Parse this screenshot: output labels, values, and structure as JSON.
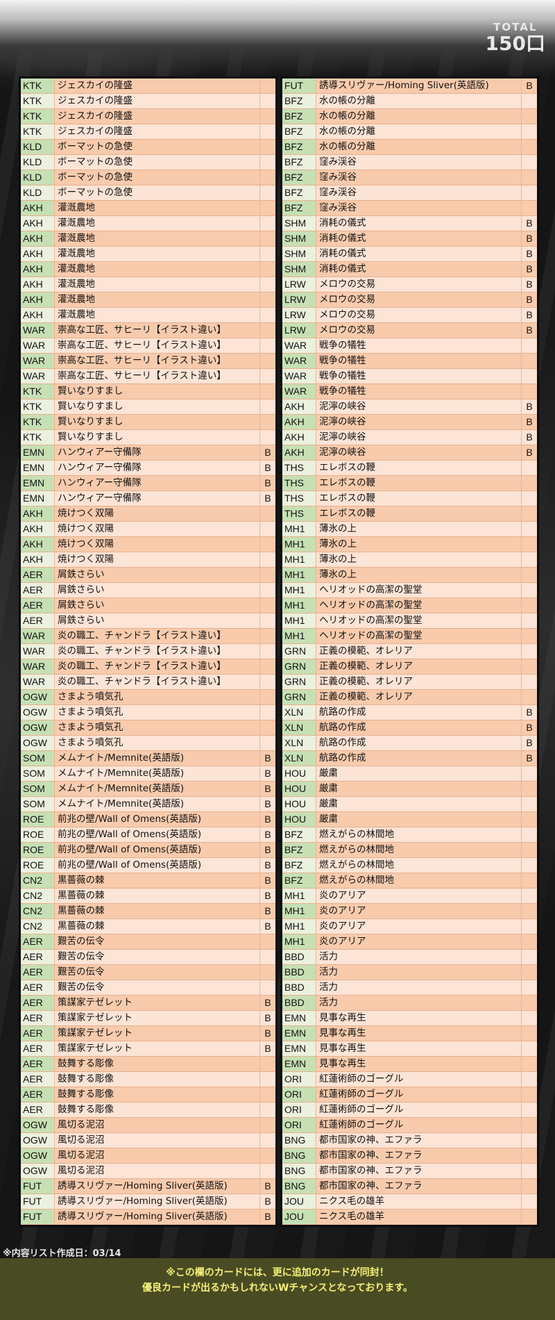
{
  "total": {
    "label": "TOTAL",
    "value": "150口"
  },
  "colors": {
    "code_bg": "#c6e0b4",
    "code_bg_alt": "#ebf1de",
    "name_bg": "#f8cbad",
    "name_bg_alt": "#fce4d6",
    "band": "#494c22",
    "band_text": "#f5ef7a"
  },
  "left_table": [
    [
      "KTK",
      "ジェスカイの隆盛",
      ""
    ],
    [
      "KTK",
      "ジェスカイの隆盛",
      ""
    ],
    [
      "KTK",
      "ジェスカイの隆盛",
      ""
    ],
    [
      "KTK",
      "ジェスカイの隆盛",
      ""
    ],
    [
      "KLD",
      "ボーマットの急使",
      ""
    ],
    [
      "KLD",
      "ボーマットの急使",
      ""
    ],
    [
      "KLD",
      "ボーマットの急使",
      ""
    ],
    [
      "KLD",
      "ボーマットの急使",
      ""
    ],
    [
      "AKH",
      "灌漑農地",
      ""
    ],
    [
      "AKH",
      "灌漑農地",
      ""
    ],
    [
      "AKH",
      "灌漑農地",
      ""
    ],
    [
      "AKH",
      "灌漑農地",
      ""
    ],
    [
      "AKH",
      "灌漑農地",
      ""
    ],
    [
      "AKH",
      "灌漑農地",
      ""
    ],
    [
      "AKH",
      "灌漑農地",
      ""
    ],
    [
      "AKH",
      "灌漑農地",
      ""
    ],
    [
      "WAR",
      "崇高な工匠、サヒーリ【イラスト違い】",
      ""
    ],
    [
      "WAR",
      "崇高な工匠、サヒーリ【イラスト違い】",
      ""
    ],
    [
      "WAR",
      "崇高な工匠、サヒーリ【イラスト違い】",
      ""
    ],
    [
      "WAR",
      "崇高な工匠、サヒーリ【イラスト違い】",
      ""
    ],
    [
      "KTK",
      "賢いなりすまし",
      ""
    ],
    [
      "KTK",
      "賢いなりすまし",
      ""
    ],
    [
      "KTK",
      "賢いなりすまし",
      ""
    ],
    [
      "KTK",
      "賢いなりすまし",
      ""
    ],
    [
      "EMN",
      "ハンウィアー守備隊",
      "B"
    ],
    [
      "EMN",
      "ハンウィアー守備隊",
      "B"
    ],
    [
      "EMN",
      "ハンウィアー守備隊",
      "B"
    ],
    [
      "EMN",
      "ハンウィアー守備隊",
      "B"
    ],
    [
      "AKH",
      "焼けつく双陽",
      ""
    ],
    [
      "AKH",
      "焼けつく双陽",
      ""
    ],
    [
      "AKH",
      "焼けつく双陽",
      ""
    ],
    [
      "AKH",
      "焼けつく双陽",
      ""
    ],
    [
      "AER",
      "屑鉄さらい",
      ""
    ],
    [
      "AER",
      "屑鉄さらい",
      ""
    ],
    [
      "AER",
      "屑鉄さらい",
      ""
    ],
    [
      "AER",
      "屑鉄さらい",
      ""
    ],
    [
      "WAR",
      "炎の職工、チャンドラ【イラスト違い】",
      ""
    ],
    [
      "WAR",
      "炎の職工、チャンドラ【イラスト違い】",
      ""
    ],
    [
      "WAR",
      "炎の職工、チャンドラ【イラスト違い】",
      ""
    ],
    [
      "WAR",
      "炎の職工、チャンドラ【イラスト違い】",
      ""
    ],
    [
      "OGW",
      "さまよう噴気孔",
      ""
    ],
    [
      "OGW",
      "さまよう噴気孔",
      ""
    ],
    [
      "OGW",
      "さまよう噴気孔",
      ""
    ],
    [
      "OGW",
      "さまよう噴気孔",
      ""
    ],
    [
      "SOM",
      "メムナイト/Memnite(英語版)",
      "B"
    ],
    [
      "SOM",
      "メムナイト/Memnite(英語版)",
      "B"
    ],
    [
      "SOM",
      "メムナイト/Memnite(英語版)",
      "B"
    ],
    [
      "SOM",
      "メムナイト/Memnite(英語版)",
      "B"
    ],
    [
      "ROE",
      "前兆の壁/Wall of Omens(英語版)",
      "B"
    ],
    [
      "ROE",
      "前兆の壁/Wall of Omens(英語版)",
      "B"
    ],
    [
      "ROE",
      "前兆の壁/Wall of Omens(英語版)",
      "B"
    ],
    [
      "ROE",
      "前兆の壁/Wall of Omens(英語版)",
      "B"
    ],
    [
      "CN2",
      "黒薔薇の棘",
      "B"
    ],
    [
      "CN2",
      "黒薔薇の棘",
      "B"
    ],
    [
      "CN2",
      "黒薔薇の棘",
      "B"
    ],
    [
      "CN2",
      "黒薔薇の棘",
      "B"
    ],
    [
      "AER",
      "艱苦の伝令",
      ""
    ],
    [
      "AER",
      "艱苦の伝令",
      ""
    ],
    [
      "AER",
      "艱苦の伝令",
      ""
    ],
    [
      "AER",
      "艱苦の伝令",
      ""
    ],
    [
      "AER",
      "策謀家テゼレット",
      "B"
    ],
    [
      "AER",
      "策謀家テゼレット",
      "B"
    ],
    [
      "AER",
      "策謀家テゼレット",
      "B"
    ],
    [
      "AER",
      "策謀家テゼレット",
      "B"
    ],
    [
      "AER",
      "鼓舞する彫像",
      ""
    ],
    [
      "AER",
      "鼓舞する彫像",
      ""
    ],
    [
      "AER",
      "鼓舞する彫像",
      ""
    ],
    [
      "AER",
      "鼓舞する彫像",
      ""
    ],
    [
      "OGW",
      "風切る泥沼",
      ""
    ],
    [
      "OGW",
      "風切る泥沼",
      ""
    ],
    [
      "OGW",
      "風切る泥沼",
      ""
    ],
    [
      "OGW",
      "風切る泥沼",
      ""
    ],
    [
      "FUT",
      "誘導スリヴァー/Homing Sliver(英語版)",
      "B"
    ],
    [
      "FUT",
      "誘導スリヴァー/Homing Sliver(英語版)",
      "B"
    ],
    [
      "FUT",
      "誘導スリヴァー/Homing Sliver(英語版)",
      "B"
    ]
  ],
  "right_table": [
    [
      "FUT",
      "誘導スリヴァー/Homing Sliver(英語版)",
      "B"
    ],
    [
      "BFZ",
      "水の帳の分離",
      ""
    ],
    [
      "BFZ",
      "水の帳の分離",
      ""
    ],
    [
      "BFZ",
      "水の帳の分離",
      ""
    ],
    [
      "BFZ",
      "水の帳の分離",
      ""
    ],
    [
      "BFZ",
      "窪み渓谷",
      ""
    ],
    [
      "BFZ",
      "窪み渓谷",
      ""
    ],
    [
      "BFZ",
      "窪み渓谷",
      ""
    ],
    [
      "BFZ",
      "窪み渓谷",
      ""
    ],
    [
      "SHM",
      "消耗の儀式",
      "B"
    ],
    [
      "SHM",
      "消耗の儀式",
      "B"
    ],
    [
      "SHM",
      "消耗の儀式",
      "B"
    ],
    [
      "SHM",
      "消耗の儀式",
      "B"
    ],
    [
      "LRW",
      "メロウの交易",
      "B"
    ],
    [
      "LRW",
      "メロウの交易",
      "B"
    ],
    [
      "LRW",
      "メロウの交易",
      "B"
    ],
    [
      "LRW",
      "メロウの交易",
      "B"
    ],
    [
      "WAR",
      "戦争の犠牲",
      ""
    ],
    [
      "WAR",
      "戦争の犠牲",
      ""
    ],
    [
      "WAR",
      "戦争の犠牲",
      ""
    ],
    [
      "WAR",
      "戦争の犠牲",
      ""
    ],
    [
      "AKH",
      "泥濘の峡谷",
      "B"
    ],
    [
      "AKH",
      "泥濘の峡谷",
      "B"
    ],
    [
      "AKH",
      "泥濘の峡谷",
      "B"
    ],
    [
      "AKH",
      "泥濘の峡谷",
      "B"
    ],
    [
      "THS",
      "エレボスの鞭",
      ""
    ],
    [
      "THS",
      "エレボスの鞭",
      ""
    ],
    [
      "THS",
      "エレボスの鞭",
      ""
    ],
    [
      "THS",
      "エレボスの鞭",
      ""
    ],
    [
      "MH1",
      "薄氷の上",
      ""
    ],
    [
      "MH1",
      "薄氷の上",
      ""
    ],
    [
      "MH1",
      "薄氷の上",
      ""
    ],
    [
      "MH1",
      "薄氷の上",
      ""
    ],
    [
      "MH1",
      "ヘリオッドの高潔の聖堂",
      ""
    ],
    [
      "MH1",
      "ヘリオッドの高潔の聖堂",
      ""
    ],
    [
      "MH1",
      "ヘリオッドの高潔の聖堂",
      ""
    ],
    [
      "MH1",
      "ヘリオッドの高潔の聖堂",
      ""
    ],
    [
      "GRN",
      "正義の模範、オレリア",
      ""
    ],
    [
      "GRN",
      "正義の模範、オレリア",
      ""
    ],
    [
      "GRN",
      "正義の模範、オレリア",
      ""
    ],
    [
      "GRN",
      "正義の模範、オレリア",
      ""
    ],
    [
      "XLN",
      "航路の作成",
      "B"
    ],
    [
      "XLN",
      "航路の作成",
      "B"
    ],
    [
      "XLN",
      "航路の作成",
      "B"
    ],
    [
      "XLN",
      "航路の作成",
      "B"
    ],
    [
      "HOU",
      "厳粛",
      ""
    ],
    [
      "HOU",
      "厳粛",
      ""
    ],
    [
      "HOU",
      "厳粛",
      ""
    ],
    [
      "HOU",
      "厳粛",
      ""
    ],
    [
      "BFZ",
      "燃えがらの林間地",
      ""
    ],
    [
      "BFZ",
      "燃えがらの林間地",
      ""
    ],
    [
      "BFZ",
      "燃えがらの林間地",
      ""
    ],
    [
      "BFZ",
      "燃えがらの林間地",
      ""
    ],
    [
      "MH1",
      "炎のアリア",
      ""
    ],
    [
      "MH1",
      "炎のアリア",
      ""
    ],
    [
      "MH1",
      "炎のアリア",
      ""
    ],
    [
      "MH1",
      "炎のアリア",
      ""
    ],
    [
      "BBD",
      "活力",
      ""
    ],
    [
      "BBD",
      "活力",
      ""
    ],
    [
      "BBD",
      "活力",
      ""
    ],
    [
      "BBD",
      "活力",
      ""
    ],
    [
      "EMN",
      "見事な再生",
      ""
    ],
    [
      "EMN",
      "見事な再生",
      ""
    ],
    [
      "EMN",
      "見事な再生",
      ""
    ],
    [
      "EMN",
      "見事な再生",
      ""
    ],
    [
      "ORI",
      "紅蓮術師のゴーグル",
      ""
    ],
    [
      "ORI",
      "紅蓮術師のゴーグル",
      ""
    ],
    [
      "ORI",
      "紅蓮術師のゴーグル",
      ""
    ],
    [
      "ORI",
      "紅蓮術師のゴーグル",
      ""
    ],
    [
      "BNG",
      "都市国家の神、エファラ",
      ""
    ],
    [
      "BNG",
      "都市国家の神、エファラ",
      ""
    ],
    [
      "BNG",
      "都市国家の神、エファラ",
      ""
    ],
    [
      "BNG",
      "都市国家の神、エファラ",
      ""
    ],
    [
      "JOU",
      "ニクス毛の雄羊",
      ""
    ],
    [
      "JOU",
      "ニクス毛の雄羊",
      ""
    ]
  ],
  "footer": {
    "date_note": "※内容リスト作成日：03/14",
    "message_line1": "※この欄のカードには、更に追加のカードが同封！",
    "message_line2": "優良カードが出るかもしれないWチャンスとなっております。"
  }
}
